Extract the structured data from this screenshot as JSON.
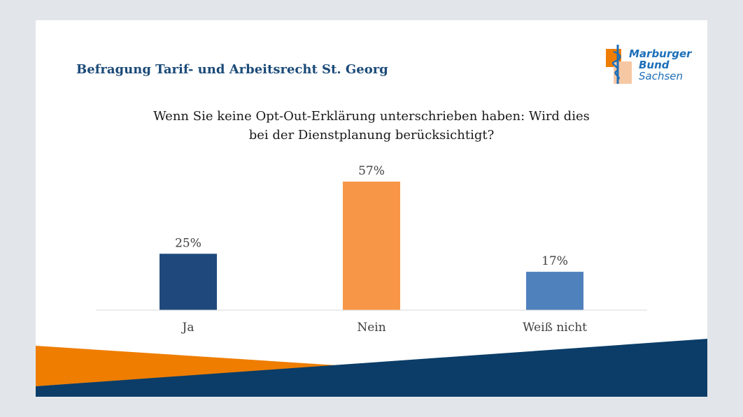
{
  "header": {
    "title": "Befragung Tarif- und Arbeitsrecht St. Georg"
  },
  "logo": {
    "line1": "Marburger",
    "line2": "Bund",
    "line3": "Sachsen"
  },
  "colors": {
    "ja": "#1f497d",
    "nein": "#f79646",
    "weiss_nicht": "#4f81bd",
    "title_blue": "#1b4a78",
    "footer_orange": "#ef7d00",
    "footer_navy": "#0b3d68"
  },
  "chart_data": {
    "type": "bar",
    "title_line1": "Wenn Sie keine Opt-Out-Erklärung unterschrieben haben: Wird dies",
    "title_line2": "bei der Dienstplanung berücksichtigt?",
    "categories": [
      "Ja",
      "Nein",
      "Weiß nicht"
    ],
    "values": [
      25,
      57,
      17
    ],
    "value_labels": [
      "25%",
      "57%",
      "17%"
    ],
    "colors": [
      "#1f497d",
      "#f79646",
      "#4f81bd"
    ],
    "ylim": [
      0,
      60
    ],
    "grid": false,
    "legend": "none"
  }
}
